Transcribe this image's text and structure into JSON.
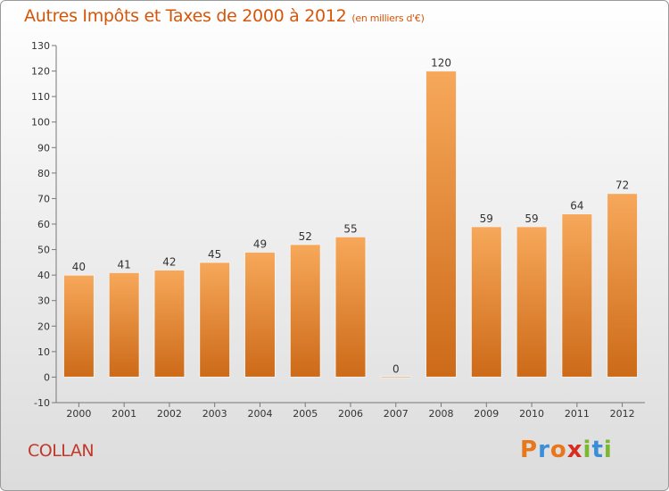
{
  "header": {
    "title": "Autres Impôts et Taxes de 2000 à 2012",
    "subtitle": "(en milliers d'€)"
  },
  "footer": {
    "commune": "COLLAN",
    "logo_text": "Proxiti",
    "logo_colors": [
      "#e8761a",
      "#3a8ed8",
      "#e8761a",
      "#d62d20",
      "#7bb72f",
      "#3a8ed8",
      "#7bb72f"
    ]
  },
  "chart_data": {
    "type": "bar",
    "title": "Autres Impôts et Taxes de 2000 à 2012",
    "subtitle": "(en milliers d'€)",
    "categories": [
      "2000",
      "2001",
      "2002",
      "2003",
      "2004",
      "2005",
      "2006",
      "2007",
      "2008",
      "2009",
      "2010",
      "2011",
      "2012"
    ],
    "values": [
      40,
      41,
      42,
      45,
      49,
      52,
      55,
      0,
      120,
      59,
      59,
      64,
      72
    ],
    "ylim": [
      -10,
      130
    ],
    "yticks": [
      -10,
      0,
      10,
      20,
      30,
      40,
      50,
      60,
      70,
      80,
      90,
      100,
      110,
      120,
      130
    ],
    "grid": false,
    "bar_color_top": "#f7a85a",
    "bar_color_bottom": "#cc6a18",
    "xlabel": "",
    "ylabel": ""
  }
}
